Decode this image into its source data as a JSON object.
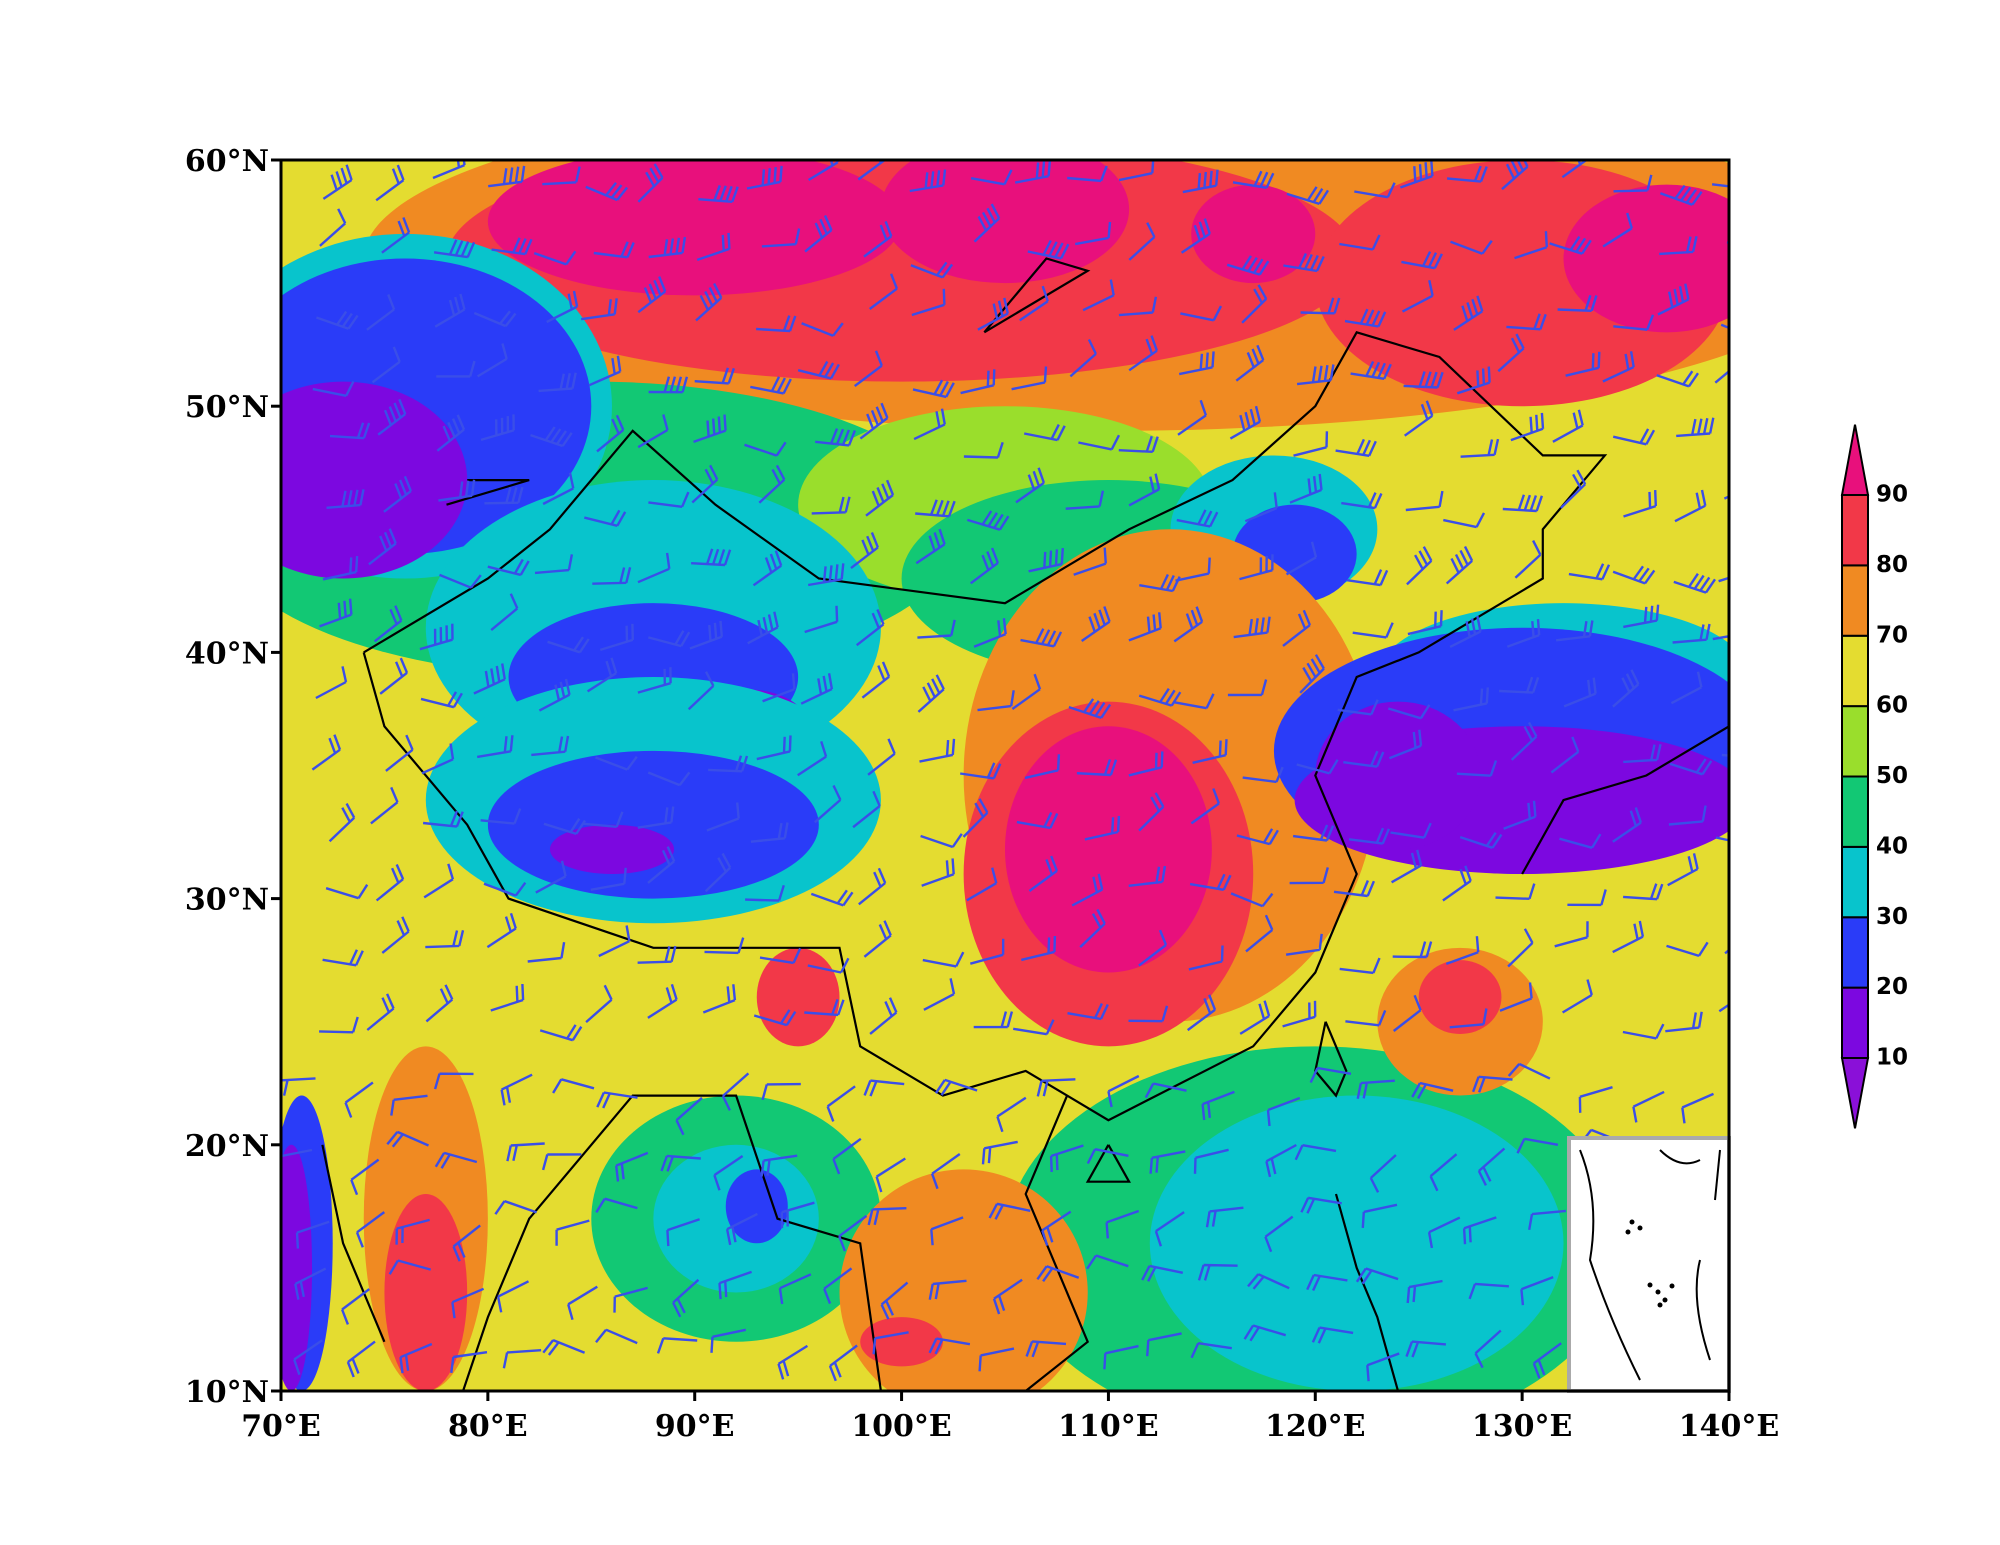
{
  "map": {
    "lon_range": [
      70,
      140
    ],
    "lat_range": [
      10,
      60
    ],
    "lon_ticks": [
      {
        "value": 70,
        "label": "70°E"
      },
      {
        "value": 80,
        "label": "80°E"
      },
      {
        "value": 90,
        "label": "90°E"
      },
      {
        "value": 100,
        "label": "100°E"
      },
      {
        "value": 110,
        "label": "110°E"
      },
      {
        "value": 120,
        "label": "120°E"
      },
      {
        "value": 130,
        "label": "130°E"
      },
      {
        "value": 140,
        "label": "140°E"
      }
    ],
    "lat_ticks": [
      {
        "value": 10,
        "label": "10°N"
      },
      {
        "value": 20,
        "label": "20°N"
      },
      {
        "value": 30,
        "label": "30°N"
      },
      {
        "value": 40,
        "label": "40°N"
      },
      {
        "value": 50,
        "label": "50°N"
      },
      {
        "value": 60,
        "label": "60°N"
      }
    ],
    "colorbar": {
      "levels": [
        10,
        20,
        30,
        40,
        50,
        60,
        70,
        80,
        90
      ],
      "colors": [
        "#8a10d8",
        "#7c08e0",
        "#2a3cf8",
        "#08c4cc",
        "#12c874",
        "#9ade2c",
        "#e4dc30",
        "#f08a22",
        "#f23848",
        "#e8107c"
      ]
    }
  }
}
